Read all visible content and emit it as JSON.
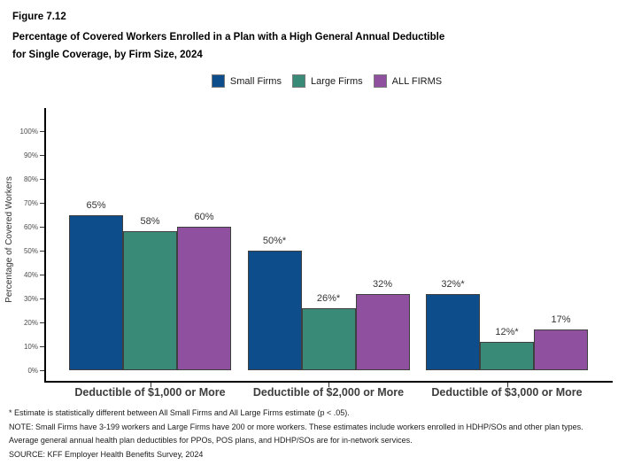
{
  "header": {
    "figure_label": "Figure 7.12",
    "title_line1": "Percentage of Covered Workers Enrolled in a Plan with a High General Annual Deductible",
    "title_line2": "for Single Coverage, by Firm Size, 2024"
  },
  "chart_data": {
    "type": "bar",
    "title": "Percentage of Covered Workers Enrolled in a Plan with a High General Annual Deductible for Single Coverage, by Firm Size, 2024",
    "xlabel": "",
    "ylabel": "Percentage of Covered Workers",
    "ylim": [
      0,
      100
    ],
    "yticks": [
      0,
      10,
      20,
      30,
      40,
      50,
      60,
      70,
      80,
      90,
      100
    ],
    "ytick_suffix": "%",
    "grid": false,
    "legend_position": "top",
    "categories": [
      "Deductible of $1,000 or More",
      "Deductible of $2,000 or More",
      "Deductible of $3,000 or More"
    ],
    "series": [
      {
        "name": "Small Firms",
        "color": "#0E4D8C",
        "values": [
          65,
          50,
          32
        ],
        "labels": [
          "65%",
          "50%*",
          "32%*"
        ]
      },
      {
        "name": "Large Firms",
        "color": "#3A8A78",
        "values": [
          58,
          26,
          12
        ],
        "labels": [
          "58%",
          "26%*",
          "12%*"
        ]
      },
      {
        "name": "ALL FIRMS",
        "color": "#9050A0",
        "values": [
          60,
          32,
          17
        ],
        "labels": [
          "60%",
          "32%",
          "17%"
        ]
      }
    ],
    "bar_border_color": "#3F3F3F"
  },
  "footnotes": {
    "star": "* Estimate is statistically different between All Small Firms and All Large Firms estimate (p < .05).",
    "note": "NOTE: Small Firms have 3-199 workers and Large Firms have 200 or more workers. These estimates include workers enrolled in HDHP/SOs and other plan types. Average general annual health plan deductibles for PPOs, POS plans, and HDHP/SOs are for in-network services.",
    "source": "SOURCE: KFF Employer Health Benefits Survey, 2024"
  }
}
